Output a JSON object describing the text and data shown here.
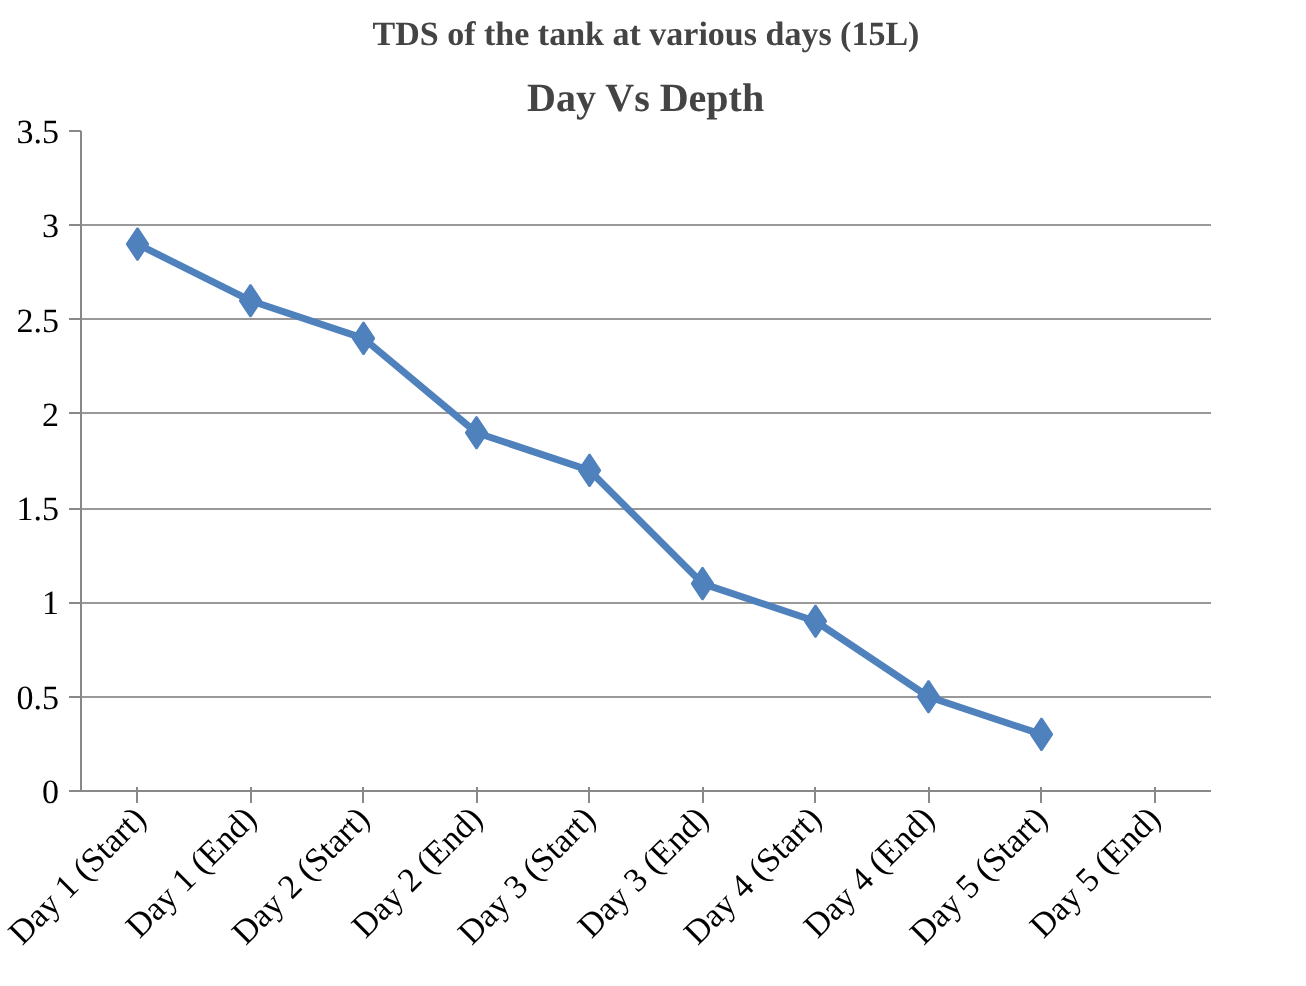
{
  "chart_data": {
    "type": "line",
    "title": "Day Vs Depth",
    "annotations": [
      "TDS of the tank at various days (15L)"
    ],
    "categories": [
      "Day 1 (Start)",
      "Day 1 (End)",
      "Day 2 (Start)",
      "Day 2 (End)",
      "Day 3 (Start)",
      "Day 3 (End)",
      "Day 4 (Start)",
      "Day 4 (End)",
      "Day 5 (Start)",
      "Day 5 (End)"
    ],
    "series": [
      {
        "color": "#4f81bd",
        "values": [
          2.9,
          2.6,
          2.4,
          1.9,
          1.7,
          1.1,
          0.9,
          0.5,
          0.3,
          null
        ]
      }
    ],
    "ylim": [
      0,
      3.5
    ],
    "yticks": [
      0,
      0.5,
      1,
      1.5,
      2,
      2.5,
      3,
      3.5
    ],
    "grid": "y",
    "marker": "diamond",
    "line_style": "solid"
  }
}
